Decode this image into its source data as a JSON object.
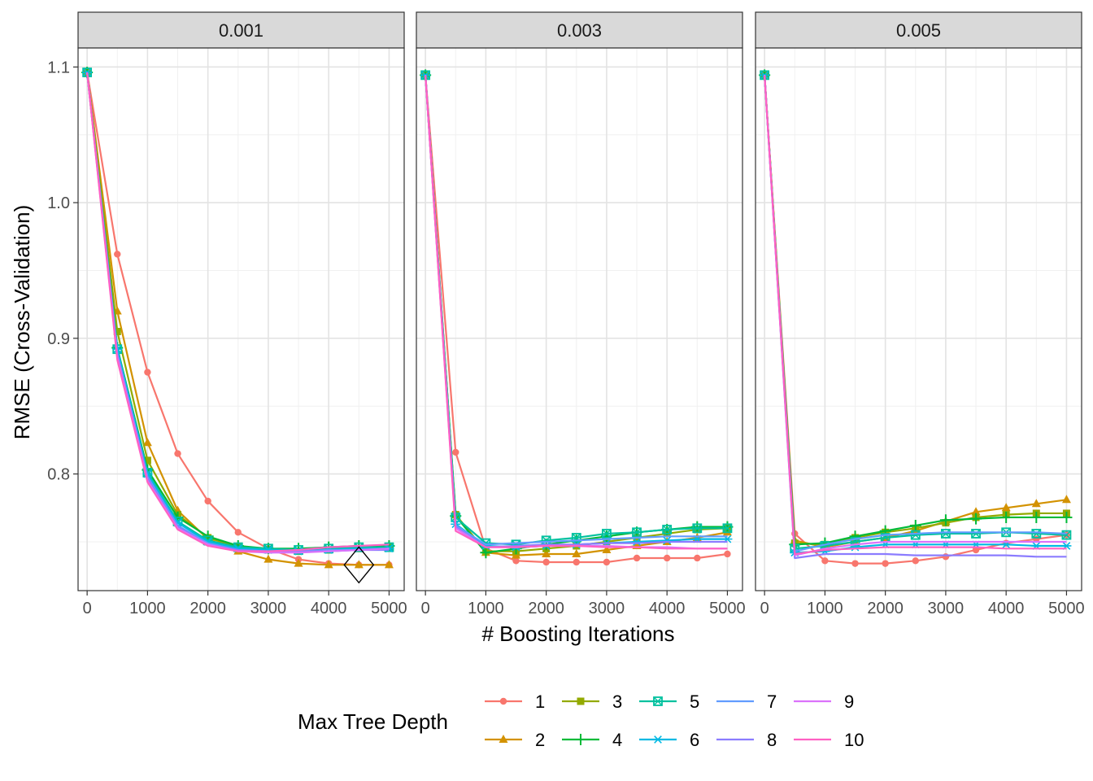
{
  "chart_data": {
    "type": "line",
    "xlabel": "# Boosting Iterations",
    "ylabel": "RMSE (Cross-Validation)",
    "xlim": [
      -150,
      5250
    ],
    "ylim": [
      0.714,
      1.114
    ],
    "x_ticks": [
      0,
      1000,
      2000,
      3000,
      4000,
      5000
    ],
    "y_ticks": [
      0.8,
      0.9,
      1.0,
      1.1
    ],
    "y_tick_labels": [
      "0.8",
      "0.9",
      "1.0",
      "1.1"
    ],
    "grid": true,
    "legend": {
      "title": "Max Tree Depth",
      "position": "bottom"
    },
    "x": [
      0,
      500,
      1000,
      1500,
      2000,
      2500,
      3000,
      3500,
      4000,
      4500,
      5000
    ],
    "series_style": [
      {
        "name": "1",
        "color": "#F8766D",
        "marker": "circle"
      },
      {
        "name": "2",
        "color": "#D39200",
        "marker": "triangle"
      },
      {
        "name": "3",
        "color": "#93AA00",
        "marker": "square"
      },
      {
        "name": "4",
        "color": "#00BA38",
        "marker": "plus"
      },
      {
        "name": "5",
        "color": "#00C19F",
        "marker": "boxx"
      },
      {
        "name": "6",
        "color": "#00B9E3",
        "marker": "asterisk"
      },
      {
        "name": "7",
        "color": "#619CFF",
        "marker": "none"
      },
      {
        "name": "8",
        "color": "#8B7CFF",
        "marker": "none"
      },
      {
        "name": "9",
        "color": "#DB72FB",
        "marker": "none"
      },
      {
        "name": "10",
        "color": "#FF61C3",
        "marker": "none"
      }
    ],
    "panels": [
      {
        "label": "0.001",
        "best": {
          "x": 4500,
          "y": 0.733
        },
        "series": [
          {
            "name": "1",
            "values": [
              1.096,
              0.962,
              0.875,
              0.815,
              0.78,
              0.757,
              0.745,
              0.737,
              0.734,
              0.733,
              0.733
            ]
          },
          {
            "name": "2",
            "values": [
              1.096,
              0.92,
              0.823,
              0.773,
              0.752,
              0.743,
              0.737,
              0.734,
              0.733,
              0.733,
              0.733
            ]
          },
          {
            "name": "3",
            "values": [
              1.096,
              0.905,
              0.81,
              0.77,
              0.753,
              0.746,
              0.744,
              0.743,
              0.744,
              0.745,
              0.746
            ]
          },
          {
            "name": "4",
            "values": [
              1.096,
              0.893,
              0.803,
              0.768,
              0.754,
              0.747,
              0.745,
              0.745,
              0.746,
              0.747,
              0.747
            ]
          },
          {
            "name": "5",
            "values": [
              1.096,
              0.892,
              0.801,
              0.765,
              0.751,
              0.746,
              0.745,
              0.744,
              0.745,
              0.746,
              0.746
            ]
          },
          {
            "name": "6",
            "values": [
              1.096,
              0.892,
              0.8,
              0.764,
              0.75,
              0.745,
              0.744,
              0.743,
              0.744,
              0.745,
              0.745
            ]
          },
          {
            "name": "7",
            "values": [
              1.096,
              0.889,
              0.798,
              0.762,
              0.749,
              0.744,
              0.743,
              0.743,
              0.744,
              0.744,
              0.745
            ]
          },
          {
            "name": "8",
            "values": [
              1.096,
              0.888,
              0.797,
              0.761,
              0.748,
              0.744,
              0.743,
              0.743,
              0.743,
              0.744,
              0.744
            ]
          },
          {
            "name": "9",
            "values": [
              1.096,
              0.886,
              0.795,
              0.76,
              0.748,
              0.743,
              0.742,
              0.742,
              0.743,
              0.744,
              0.745
            ]
          },
          {
            "name": "10",
            "values": [
              1.096,
              0.884,
              0.794,
              0.759,
              0.747,
              0.743,
              0.743,
              0.744,
              0.746,
              0.747,
              0.748
            ]
          }
        ]
      },
      {
        "label": "0.003",
        "series": [
          {
            "name": "1",
            "values": [
              1.094,
              0.816,
              0.745,
              0.736,
              0.735,
              0.735,
              0.735,
              0.738,
              0.738,
              0.738,
              0.741
            ]
          },
          {
            "name": "2",
            "values": [
              1.094,
              0.77,
              0.742,
              0.74,
              0.741,
              0.741,
              0.744,
              0.747,
              0.75,
              0.753,
              0.757
            ]
          },
          {
            "name": "3",
            "values": [
              1.094,
              0.77,
              0.743,
              0.743,
              0.745,
              0.747,
              0.75,
              0.753,
              0.756,
              0.759,
              0.76
            ]
          },
          {
            "name": "4",
            "values": [
              1.094,
              0.769,
              0.742,
              0.745,
              0.748,
              0.751,
              0.754,
              0.757,
              0.759,
              0.761,
              0.761
            ]
          },
          {
            "name": "5",
            "values": [
              1.094,
              0.768,
              0.749,
              0.748,
              0.751,
              0.753,
              0.756,
              0.757,
              0.759,
              0.76,
              0.76
            ]
          },
          {
            "name": "6",
            "values": [
              1.094,
              0.763,
              0.747,
              0.746,
              0.747,
              0.748,
              0.749,
              0.75,
              0.751,
              0.752,
              0.752
            ]
          },
          {
            "name": "7",
            "values": [
              1.094,
              0.762,
              0.748,
              0.749,
              0.75,
              0.751,
              0.752,
              0.753,
              0.754,
              0.754,
              0.754
            ]
          },
          {
            "name": "8",
            "values": [
              1.094,
              0.761,
              0.746,
              0.747,
              0.748,
              0.748,
              0.749,
              0.749,
              0.75,
              0.75,
              0.75
            ]
          },
          {
            "name": "9",
            "values": [
              1.094,
              0.76,
              0.746,
              0.746,
              0.747,
              0.747,
              0.747,
              0.746,
              0.746,
              0.745,
              0.745
            ]
          },
          {
            "name": "10",
            "values": [
              1.094,
              0.758,
              0.746,
              0.746,
              0.747,
              0.747,
              0.746,
              0.746,
              0.745,
              0.745,
              0.745
            ]
          }
        ]
      },
      {
        "label": "0.005",
        "series": [
          {
            "name": "1",
            "values": [
              1.094,
              0.756,
              0.736,
              0.734,
              0.734,
              0.736,
              0.739,
              0.744,
              0.749,
              0.752,
              0.755
            ]
          },
          {
            "name": "2",
            "values": [
              1.094,
              0.751,
              0.746,
              0.75,
              0.753,
              0.758,
              0.765,
              0.772,
              0.775,
              0.778,
              0.781
            ]
          },
          {
            "name": "3",
            "values": [
              1.094,
              0.749,
              0.748,
              0.753,
              0.757,
              0.76,
              0.764,
              0.768,
              0.77,
              0.771,
              0.771
            ]
          },
          {
            "name": "4",
            "values": [
              1.094,
              0.748,
              0.749,
              0.754,
              0.758,
              0.762,
              0.766,
              0.767,
              0.768,
              0.768,
              0.768
            ]
          },
          {
            "name": "5",
            "values": [
              1.094,
              0.745,
              0.747,
              0.75,
              0.753,
              0.755,
              0.756,
              0.756,
              0.757,
              0.756,
              0.755
            ]
          },
          {
            "name": "6",
            "values": [
              1.094,
              0.742,
              0.743,
              0.746,
              0.748,
              0.748,
              0.748,
              0.748,
              0.748,
              0.747,
              0.747
            ]
          },
          {
            "name": "7",
            "values": [
              1.094,
              0.743,
              0.748,
              0.752,
              0.755,
              0.756,
              0.757,
              0.757,
              0.757,
              0.757,
              0.756
            ]
          },
          {
            "name": "8",
            "values": [
              1.094,
              0.738,
              0.741,
              0.741,
              0.741,
              0.74,
              0.74,
              0.74,
              0.74,
              0.739,
              0.739
            ]
          },
          {
            "name": "9",
            "values": [
              1.094,
              0.74,
              0.745,
              0.748,
              0.75,
              0.75,
              0.75,
              0.75,
              0.75,
              0.75,
              0.75
            ]
          },
          {
            "name": "10",
            "values": [
              1.094,
              0.741,
              0.744,
              0.745,
              0.746,
              0.746,
              0.746,
              0.746,
              0.745,
              0.745,
              0.745
            ]
          }
        ]
      }
    ]
  }
}
